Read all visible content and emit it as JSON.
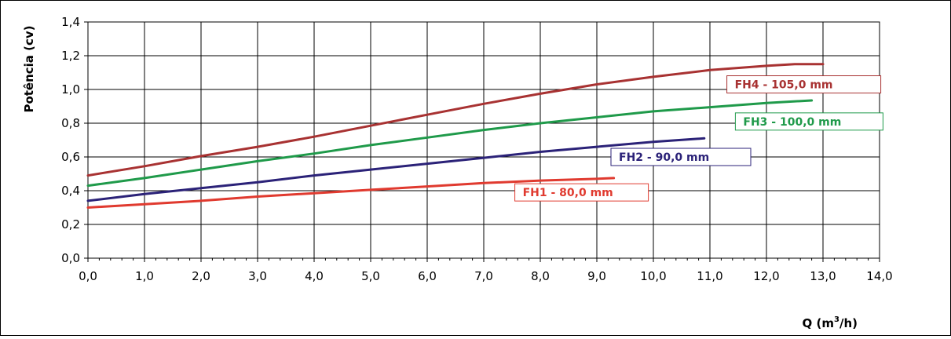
{
  "chart_data": {
    "type": "line",
    "title": "",
    "xlabel": "Q (m³/h)",
    "xlabel_base": "Q (m",
    "xlabel_sup": "3",
    "xlabel_tail": "/h)",
    "ylabel": "Potência (cv)",
    "xlim": [
      0,
      14
    ],
    "ylim": [
      0,
      1.4
    ],
    "grid": true,
    "legend": "inline-labels",
    "xticks": [
      "0,0",
      "1,0",
      "2,0",
      "3,0",
      "4,0",
      "5,0",
      "6,0",
      "7,0",
      "8,0",
      "9,0",
      "10,0",
      "11,0",
      "12,0",
      "13,0",
      "14,0"
    ],
    "yticks": [
      "0,0",
      "0,2",
      "0,4",
      "0,6",
      "0,8",
      "1,0",
      "1,2",
      "1,4"
    ],
    "series": [
      {
        "name": "FH1 -    80,0 mm",
        "color": "#e03a2f",
        "x": [
          0,
          1,
          2,
          3,
          4,
          5,
          6,
          7,
          8,
          9,
          9.3
        ],
        "y": [
          0.3,
          0.32,
          0.34,
          0.365,
          0.385,
          0.405,
          0.425,
          0.445,
          0.46,
          0.47,
          0.475
        ]
      },
      {
        "name": "FH2 -    90,0 mm",
        "color": "#2b2278",
        "x": [
          0,
          1,
          2,
          3,
          4,
          5,
          6,
          7,
          8,
          9,
          10,
          10.9
        ],
        "y": [
          0.34,
          0.38,
          0.415,
          0.45,
          0.49,
          0.525,
          0.56,
          0.595,
          0.63,
          0.66,
          0.69,
          0.71
        ]
      },
      {
        "name": "FH3 -    100,0 mm",
        "color": "#1f9a4a",
        "x": [
          0,
          1,
          2,
          3,
          4,
          5,
          6,
          7,
          8,
          9,
          10,
          11,
          12,
          12.8
        ],
        "y": [
          0.43,
          0.475,
          0.525,
          0.575,
          0.62,
          0.67,
          0.715,
          0.76,
          0.8,
          0.835,
          0.87,
          0.895,
          0.92,
          0.935
        ]
      },
      {
        "name": "FH4 -    105,0 mm",
        "color": "#a83232",
        "x": [
          0,
          1,
          2,
          3,
          4,
          5,
          6,
          7,
          8,
          9,
          10,
          11,
          12,
          12.5,
          13.0
        ],
        "y": [
          0.49,
          0.545,
          0.605,
          0.66,
          0.72,
          0.785,
          0.85,
          0.915,
          0.975,
          1.03,
          1.075,
          1.115,
          1.14,
          1.15,
          1.15
        ]
      }
    ]
  }
}
